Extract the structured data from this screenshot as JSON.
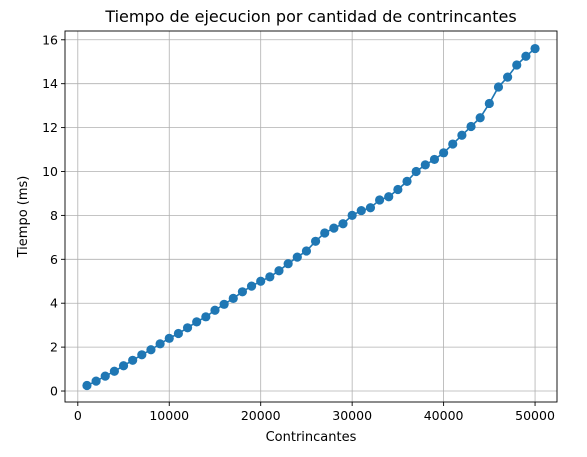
{
  "chart_data": {
    "type": "line",
    "title": "Tiempo de ejecucion por cantidad de contrincantes",
    "xlabel": "Contrincantes",
    "ylabel": "Tiempo (ms)",
    "xlim": [
      -1400,
      52400
    ],
    "ylim": [
      -0.5,
      16.4
    ],
    "xticks": [
      0,
      10000,
      20000,
      30000,
      40000,
      50000
    ],
    "xtick_labels": [
      "0",
      "10000",
      "20000",
      "30000",
      "40000",
      "50000"
    ],
    "yticks": [
      0,
      2,
      4,
      6,
      8,
      10,
      12,
      14,
      16
    ],
    "ytick_labels": [
      "0",
      "2",
      "4",
      "6",
      "8",
      "10",
      "12",
      "14",
      "16"
    ],
    "grid": true,
    "series": [
      {
        "name": "Tiempo",
        "color": "#1f77b4",
        "marker": "circle",
        "x": [
          1000,
          2000,
          3000,
          4000,
          5000,
          6000,
          7000,
          8000,
          9000,
          10000,
          11000,
          12000,
          13000,
          14000,
          15000,
          16000,
          17000,
          18000,
          19000,
          20000,
          21000,
          22000,
          23000,
          24000,
          25000,
          26000,
          27000,
          28000,
          29000,
          30000,
          31000,
          32000,
          33000,
          34000,
          35000,
          36000,
          37000,
          38000,
          39000,
          40000,
          41000,
          42000,
          43000,
          44000,
          45000,
          46000,
          47000,
          48000,
          49000,
          50000
        ],
        "values": [
          0.25,
          0.45,
          0.68,
          0.9,
          1.15,
          1.4,
          1.65,
          1.88,
          2.15,
          2.4,
          2.62,
          2.88,
          3.15,
          3.38,
          3.68,
          3.95,
          4.22,
          4.52,
          4.78,
          5.0,
          5.2,
          5.48,
          5.8,
          6.1,
          6.38,
          6.82,
          7.2,
          7.42,
          7.62,
          8.0,
          8.22,
          8.35,
          8.7,
          8.85,
          9.18,
          9.55,
          10.0,
          10.3,
          10.55,
          10.85,
          11.25,
          11.65,
          12.05,
          12.45,
          13.1,
          13.85,
          14.3,
          14.85,
          15.25,
          15.6
        ]
      }
    ]
  }
}
